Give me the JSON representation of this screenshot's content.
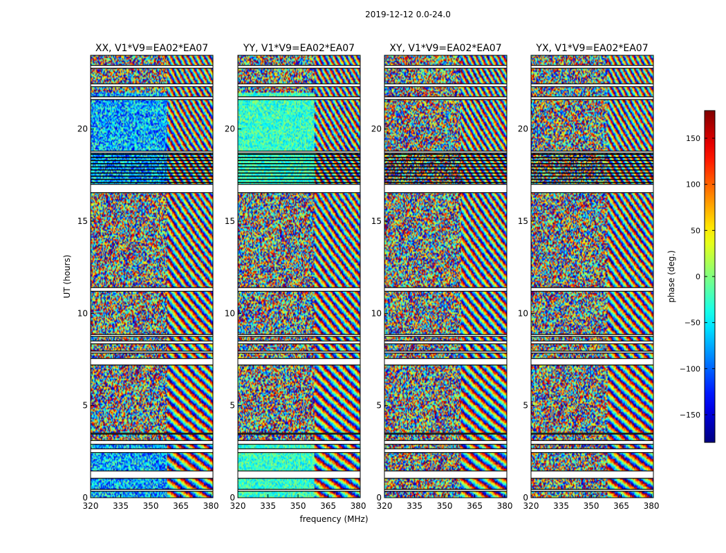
{
  "chart_data": {
    "type": "heatmap",
    "suptitle": "2019-12-12 0.0-24.0",
    "xlabel": "frequency (MHz)",
    "ylabel": "UT (hours)",
    "xlim": [
      320,
      381
    ],
    "ylim": [
      0,
      24
    ],
    "xticks": [
      320,
      335,
      350,
      365,
      380
    ],
    "yticks": [
      0,
      5,
      10,
      15,
      20
    ],
    "panels": [
      {
        "title": "XX, V1*V9=EA02*EA07"
      },
      {
        "title": "YY, V1*V9=EA02*EA07"
      },
      {
        "title": "XY, V1*V9=EA02*EA07"
      },
      {
        "title": "YX, V1*V9=EA02*EA07"
      }
    ],
    "flagged_bands_hours": [
      [
        0.35,
        0.45
      ],
      [
        1.05,
        1.45
      ],
      [
        2.45,
        2.65
      ],
      [
        2.9,
        3.1
      ],
      [
        3.45,
        3.5
      ],
      [
        7.2,
        7.55
      ],
      [
        7.85,
        7.95
      ],
      [
        8.35,
        8.5
      ],
      [
        8.75,
        8.85
      ],
      [
        11.2,
        11.4
      ],
      [
        16.55,
        17.0
      ],
      [
        18.7,
        18.8
      ],
      [
        21.6,
        21.75
      ],
      [
        22.3,
        22.45
      ],
      [
        23.3,
        23.45
      ]
    ],
    "colorbar": {
      "label": "phase (deg.)",
      "range": [
        -180,
        180
      ],
      "ticks": [
        -150,
        -100,
        -50,
        0,
        50,
        100,
        150
      ],
      "tick_labels": [
        "−150",
        "−100",
        "−50",
        "0",
        "50",
        "100",
        "150"
      ],
      "colormap": "jet"
    }
  }
}
